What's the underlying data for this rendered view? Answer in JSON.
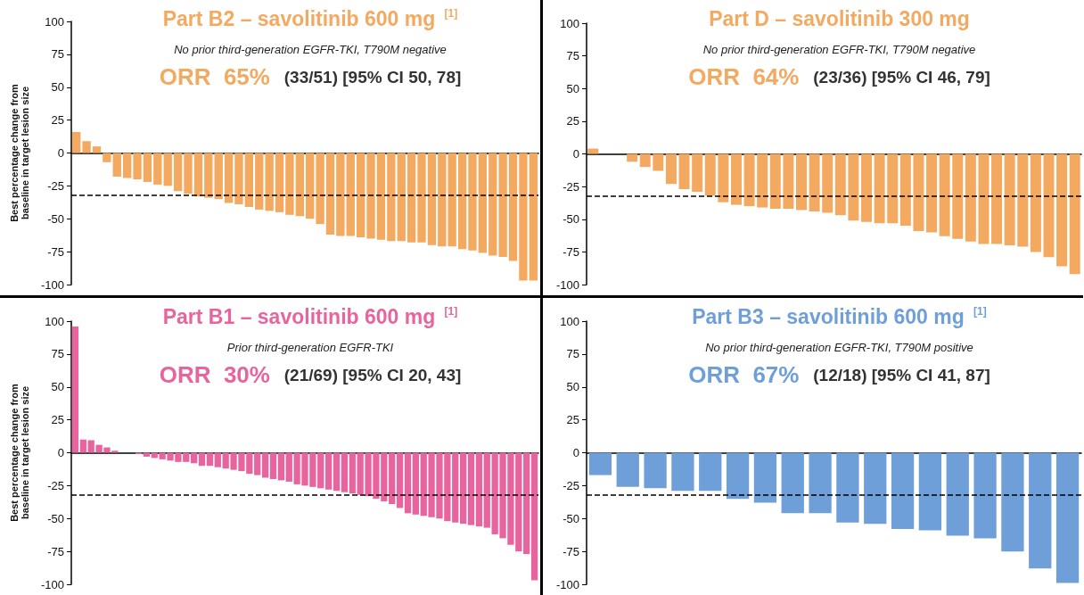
{
  "chart_data": [
    {
      "type": "bar",
      "title": "Part B2 – savolitinib 600 mg $^{[1]}$",
      "subtitle": "No prior third-generation EGFR-TKI, T790M negative",
      "ylabel": "Best percentage change from baseline in target lesion size",
      "annotations": [
        "ORR  65%",
        "(33/51) [95% CI 50, 78]"
      ],
      "color": "#f4a960",
      "categories": [
        null,
        null,
        null,
        null,
        null,
        null,
        null,
        null,
        null,
        null,
        null,
        null,
        null,
        null,
        null,
        null,
        null,
        null,
        null,
        null,
        null,
        null,
        null,
        null,
        null,
        null,
        null,
        null,
        null,
        null,
        null,
        null,
        null,
        null,
        null,
        null,
        null,
        null,
        null,
        null,
        null,
        null,
        null,
        null,
        null,
        null
      ],
      "values": [
        16,
        9,
        5,
        -7,
        -18,
        -19,
        -20,
        -22,
        -24,
        -25,
        -29,
        -31,
        -33,
        -34,
        -35,
        -38,
        -39,
        -41,
        -43,
        -44,
        -45,
        -47,
        -48,
        -50,
        -54,
        -62,
        -63,
        -63,
        -64,
        -65,
        -66,
        -67,
        -67,
        -68,
        -68,
        -70,
        -71,
        -71,
        -73,
        -74,
        -76,
        -78,
        -79,
        -82,
        -97,
        -97
      ],
      "ylim": [
        -100,
        100
      ],
      "yticks": [
        -100,
        -75,
        -50,
        -25,
        0,
        25,
        50,
        75,
        100
      ],
      "ref_lines": [
        {
          "axis": "y",
          "value": -32,
          "line_style": "dashed",
          "color": "#000000"
        }
      ]
    },
    {
      "type": "bar",
      "title": "Part D – savolitinib 300 mg",
      "subtitle": "No prior third-generation EGFR-TKI, T790M negative",
      "annotations": [
        "ORR  64%",
        "(23/36) [95% CI 46, 79]"
      ],
      "color": "#f4a960",
      "categories": [
        null,
        null,
        null,
        null,
        null,
        null,
        null,
        null,
        null,
        null,
        null,
        null,
        null,
        null,
        null,
        null,
        null,
        null,
        null,
        null,
        null,
        null,
        null,
        null,
        null,
        null,
        null,
        null,
        null,
        null,
        null,
        null,
        null,
        null,
        null,
        null,
        null,
        null
      ],
      "values": [
        4,
        null,
        null,
        -6,
        -10,
        -13,
        -23,
        -27,
        -29,
        -32,
        -37,
        -39,
        -40,
        -41,
        -42,
        -42,
        -43,
        -44,
        -45,
        -47,
        -51,
        -52,
        -53,
        -53,
        -55,
        -59,
        -60,
        -63,
        -65,
        -67,
        -69,
        -69,
        -70,
        -71,
        -75,
        -79,
        -86,
        -92
      ],
      "ylim": [
        -100,
        100
      ],
      "yticks": [
        -100,
        -75,
        -50,
        -25,
        0,
        25,
        50,
        75,
        100
      ],
      "ref_lines": [
        {
          "axis": "y",
          "value": -32,
          "line_style": "dashed",
          "color": "#000000"
        }
      ]
    },
    {
      "type": "bar",
      "title": "Part B1 – savolitinib 600 mg $^{[1]}$",
      "subtitle": "Prior third-generation EGFR-TKI",
      "ylabel": "Best percentage change from baseline in target lesion size",
      "annotations": [
        "ORR  30%",
        "(21/69) [95% CI 20, 43]"
      ],
      "color": "#e8649e",
      "categories": [
        null,
        null,
        null,
        null,
        null,
        null,
        null,
        null,
        null,
        null,
        null,
        null,
        null,
        null,
        null,
        null,
        null,
        null,
        null,
        null,
        null,
        null,
        null,
        null,
        null,
        null,
        null,
        null,
        null,
        null,
        null,
        null,
        null,
        null,
        null,
        null,
        null,
        null,
        null,
        null,
        null,
        null,
        null,
        null,
        null,
        null,
        null,
        null,
        null,
        null,
        null,
        null,
        null,
        null,
        null,
        null,
        null,
        null,
        null
      ],
      "values": [
        96,
        10,
        9.5,
        6,
        4,
        1.5,
        null,
        null,
        -1,
        -3,
        -4,
        -5,
        -6,
        -7,
        -7,
        -8,
        -10,
        -10,
        -11,
        -12,
        -13,
        -14,
        -16,
        -17,
        -19,
        -20,
        -21,
        -22,
        -24,
        -25,
        -26,
        -27,
        -28,
        -29,
        -30,
        -31,
        -32,
        -33,
        -35,
        -37,
        -39,
        -42,
        -46,
        -47,
        -48,
        -49,
        -50,
        -52,
        -53,
        -54,
        -55,
        -56,
        -57,
        -62,
        -65,
        -70,
        -75,
        -77,
        -97
      ],
      "ylim": [
        -100,
        100
      ],
      "yticks": [
        -100,
        -75,
        -50,
        -25,
        0,
        25,
        50,
        75,
        100
      ],
      "ref_lines": [
        {
          "axis": "y",
          "value": -32,
          "line_style": "dashed",
          "color": "#000000"
        }
      ]
    },
    {
      "type": "bar",
      "title": "Part B3 – savolitinib 600 mg $^{[1]}$",
      "subtitle": "No prior third-generation EGFR-TKI, T790M positive",
      "annotations": [
        "ORR  67%",
        "(12/18) [95% CI 41, 87]"
      ],
      "color": "#6f9fd8",
      "categories": [
        null,
        null,
        null,
        null,
        null,
        null,
        null,
        null,
        null,
        null,
        null,
        null,
        null,
        null,
        null,
        null,
        null,
        null
      ],
      "values": [
        -17,
        -26,
        -27,
        -29,
        -29,
        -35,
        -38,
        -46,
        -46,
        -53,
        -54,
        -58,
        -59,
        -63,
        -65,
        -75,
        -88,
        -99
      ],
      "ylim": [
        -100,
        100
      ],
      "yticks": [
        -100,
        -75,
        -50,
        -25,
        0,
        25,
        50,
        75,
        100
      ],
      "ref_lines": [
        {
          "axis": "y",
          "value": -32,
          "line_style": "dashed",
          "color": "#000000"
        }
      ]
    }
  ]
}
